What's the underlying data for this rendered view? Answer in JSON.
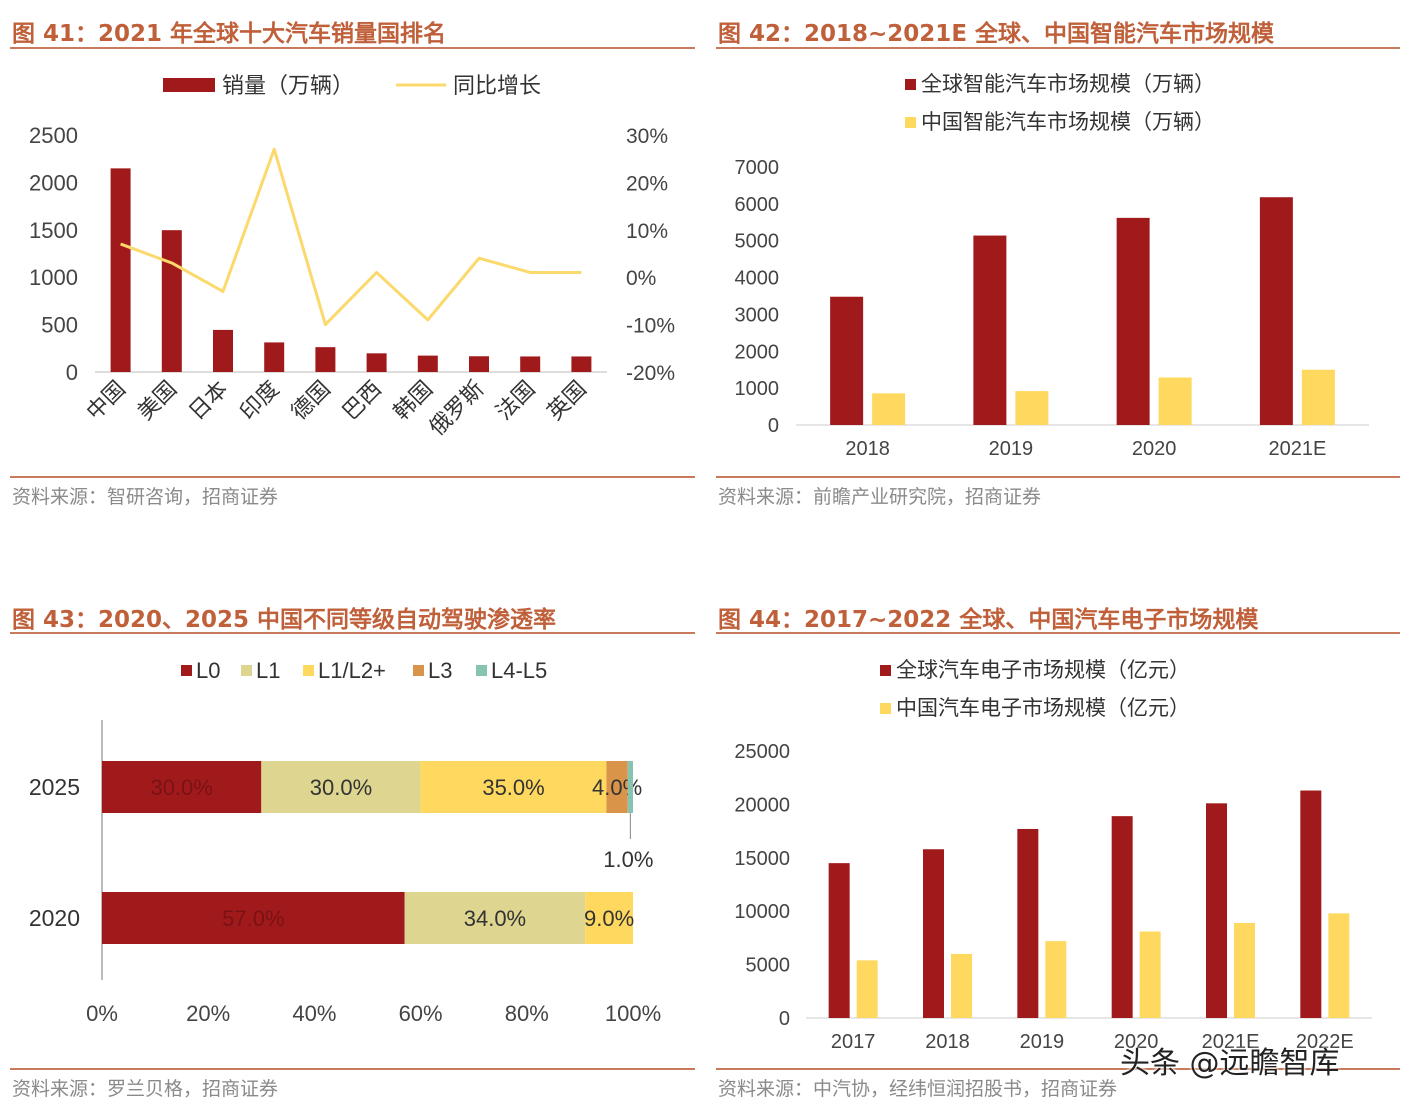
{
  "colors": {
    "red": "#a11a1b",
    "yellow": "#ffd85f",
    "line": "#fbd96c",
    "beige": "#ddd590",
    "orange": "#d9944a",
    "teal": "#86c3b1",
    "title": "#c0603a"
  },
  "watermark": "头条 @远瞻智库",
  "chart_data": [
    {
      "type": "bar+line",
      "title": "图 41：2021 年全球十大汽车销量国排名",
      "source": "资料来源：智研咨询，招商证券",
      "categories": [
        "中国",
        "美国",
        "日本",
        "印度",
        "德国",
        "巴西",
        "韩国",
        "俄罗斯",
        "法国",
        "英国"
      ],
      "series": [
        {
          "name": "销量（万辆）",
          "type": "bar",
          "axis": "left",
          "values": [
            2148,
            1496,
            444,
            312,
            262,
            197,
            173,
            166,
            164,
            164
          ]
        },
        {
          "name": "同比增长",
          "type": "line",
          "axis": "right",
          "values": [
            7,
            3,
            -3,
            27,
            -10,
            1,
            -9,
            4,
            1,
            1
          ]
        }
      ],
      "ylim_left": [
        0,
        2500
      ],
      "yticks_left": [
        "0",
        "500",
        "1000",
        "1500",
        "2000",
        "2500"
      ],
      "ylim_right": [
        -20,
        30
      ],
      "yticks_right": [
        "-20%",
        "-10%",
        "0%",
        "10%",
        "20%",
        "30%"
      ]
    },
    {
      "type": "bar",
      "title": "图 42：2018~2021E 全球、中国智能汽车市场规模",
      "source": "资料来源：前瞻产业研究院，招商证券",
      "categories": [
        "2018",
        "2019",
        "2020",
        "2021E"
      ],
      "series": [
        {
          "name": "全球智能汽车市场规模（万辆）",
          "values": [
            3480,
            5140,
            5620,
            6180
          ]
        },
        {
          "name": "中国智能汽车市场规模（万辆）",
          "values": [
            860,
            920,
            1290,
            1500
          ]
        }
      ],
      "ylim": [
        0,
        7000
      ],
      "yticks": [
        "0",
        "1000",
        "2000",
        "3000",
        "4000",
        "5000",
        "6000",
        "7000"
      ]
    },
    {
      "type": "stacked-barh",
      "title": "图 43：2020、2025 中国不同等级自动驾驶渗透率",
      "source": "资料来源：罗兰贝格，招商证券",
      "legend": [
        "L0",
        "L1",
        "L1/L2+",
        "L3",
        "L4-L5"
      ],
      "rows": [
        {
          "label": "2025",
          "values": [
            30,
            30,
            35,
            4,
            1
          ],
          "labels": [
            "30.0%",
            "30.0%",
            "35.0%",
            "4.0%",
            "1.0%"
          ]
        },
        {
          "label": "2020",
          "values": [
            57,
            34,
            9,
            0,
            0
          ],
          "labels": [
            "57.0%",
            "34.0%",
            "9.0%",
            "",
            ""
          ]
        }
      ],
      "xlim": [
        0,
        100
      ],
      "xticks": [
        "0%",
        "20%",
        "40%",
        "60%",
        "80%",
        "100%"
      ]
    },
    {
      "type": "bar",
      "title": "图 44：2017~2022 全球、中国汽车电子市场规模",
      "source": "资料来源：中汽协，经纬恒润招股书，招商证券",
      "categories": [
        "2017",
        "2018",
        "2019",
        "2020",
        "2021E",
        "2022E"
      ],
      "series": [
        {
          "name": "全球汽车电子市场规模（亿元）",
          "values": [
            14500,
            15800,
            17700,
            18900,
            20100,
            21300
          ]
        },
        {
          "name": "中国汽车电子市场规模（亿元）",
          "values": [
            5400,
            6000,
            7200,
            8100,
            8900,
            9800
          ]
        }
      ],
      "ylim": [
        0,
        25000
      ],
      "yticks": [
        "0",
        "5000",
        "10000",
        "15000",
        "20000",
        "25000"
      ]
    }
  ]
}
